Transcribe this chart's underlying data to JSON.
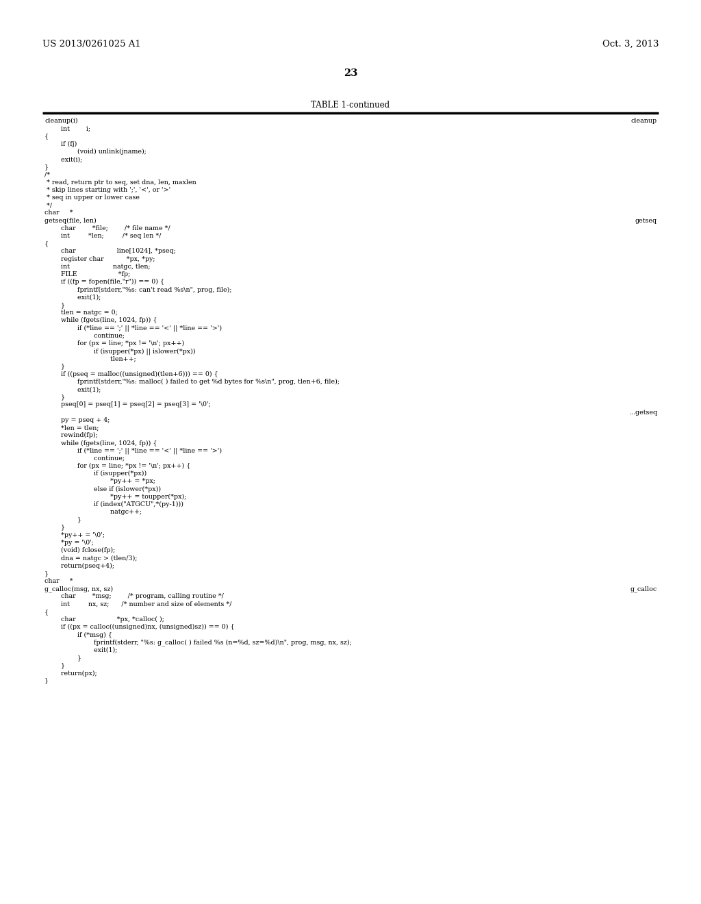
{
  "page_number": "23",
  "patent_number": "US 2013/0261025 A1",
  "patent_date": "Oct. 3, 2013",
  "table_title": "TABLE 1-continued",
  "background_color": "#ffffff",
  "text_color": "#000000",
  "header_font_size": 9.5,
  "page_num_font_size": 10.5,
  "table_title_font_size": 8.5,
  "code_font_size": 6.8,
  "code_lines": [
    [
      "cleanup(i)",
      "cleanup"
    ],
    [
      "        int        i;",
      ""
    ],
    [
      "{",
      ""
    ],
    [
      "        if (fj)",
      ""
    ],
    [
      "                (void) unlink(jname);",
      ""
    ],
    [
      "        exit(i);",
      ""
    ],
    [
      "}",
      ""
    ],
    [
      "/*",
      ""
    ],
    [
      " * read, return ptr to seq, set dna, len, maxlen",
      ""
    ],
    [
      " * skip lines starting with ';', '<', or '>'",
      ""
    ],
    [
      " * seq in upper or lower case",
      ""
    ],
    [
      " */",
      ""
    ],
    [
      "char     *",
      ""
    ],
    [
      "getseq(file, len)",
      "getseq"
    ],
    [
      "        char        *file;        /* file name */",
      ""
    ],
    [
      "        int         *len;         /* seq len */",
      ""
    ],
    [
      "{",
      ""
    ],
    [
      "        char                    line[1024], *pseq;",
      ""
    ],
    [
      "        register char           *px, *py;",
      ""
    ],
    [
      "        int                     natgc, tlen;",
      ""
    ],
    [
      "        FILE                    *fp;",
      ""
    ],
    [
      "        if ((fp = fopen(file,\"r\")) == 0) {",
      ""
    ],
    [
      "                fprintf(stderr,\"%s: can't read %s\\n\", prog, file);",
      ""
    ],
    [
      "                exit(1);",
      ""
    ],
    [
      "        }",
      ""
    ],
    [
      "        tlen = natgc = 0;",
      ""
    ],
    [
      "        while (fgets(line, 1024, fp)) {",
      ""
    ],
    [
      "                if (*line == ';' || *line == '<' || *line == '>')",
      ""
    ],
    [
      "                        continue;",
      ""
    ],
    [
      "                for (px = line; *px != '\\n'; px++)",
      ""
    ],
    [
      "                        if (isupper(*px) || islower(*px))",
      ""
    ],
    [
      "                                tlen++;",
      ""
    ],
    [
      "        }",
      ""
    ],
    [
      "        if ((pseq = malloc((unsigned)(tlen+6))) == 0) {",
      ""
    ],
    [
      "                fprintf(stderr,\"%s: malloc( ) failed to get %d bytes for %s\\n\", prog, tlen+6, file);",
      ""
    ],
    [
      "                exit(1);",
      ""
    ],
    [
      "        }",
      ""
    ],
    [
      "        pseq[0] = pseq[1] = pseq[2] = pseq[3] = '\\0';",
      ""
    ],
    [
      "",
      "...getseq"
    ],
    [
      "        py = pseq + 4;",
      ""
    ],
    [
      "        *len = tlen;",
      ""
    ],
    [
      "        rewind(fp);",
      ""
    ],
    [
      "        while (fgets(line, 1024, fp)) {",
      ""
    ],
    [
      "                if (*line == ';' || *line == '<' || *line == '>')",
      ""
    ],
    [
      "                        continue;",
      ""
    ],
    [
      "                for (px = line; *px != '\\n'; px++) {",
      ""
    ],
    [
      "                        if (isupper(*px))",
      ""
    ],
    [
      "                                *py++ = *px;",
      ""
    ],
    [
      "                        else if (islower(*px))",
      ""
    ],
    [
      "                                *py++ = toupper(*px);",
      ""
    ],
    [
      "                        if (index(\"ATGCU\",*(py-1)))",
      ""
    ],
    [
      "                                natgc++;",
      ""
    ],
    [
      "                }",
      ""
    ],
    [
      "        }",
      ""
    ],
    [
      "        *py++ = '\\0';",
      ""
    ],
    [
      "        *py = '\\0';",
      ""
    ],
    [
      "        (void) fclose(fp);",
      ""
    ],
    [
      "        dna = natgc > (tlen/3);",
      ""
    ],
    [
      "        return(pseq+4);",
      ""
    ],
    [
      "}",
      ""
    ],
    [
      "char     *",
      ""
    ],
    [
      "g_calloc(msg, nx, sz)",
      "g_calloc"
    ],
    [
      "        char        *msg;        /* program, calling routine */",
      ""
    ],
    [
      "        int         nx, sz;      /* number and size of elements */",
      ""
    ],
    [
      "{",
      ""
    ],
    [
      "        char                    *px, *calloc( );",
      ""
    ],
    [
      "        if ((px = calloc((unsigned)nx, (unsigned)sz)) == 0) {",
      ""
    ],
    [
      "                if (*msg) {",
      ""
    ],
    [
      "                        fprintf(stderr, \"%s: g_calloc( ) failed %s (n=%d, sz=%d)\\n\", prog, msg, nx, sz);",
      ""
    ],
    [
      "                        exit(1);",
      ""
    ],
    [
      "                }",
      ""
    ],
    [
      "        }",
      ""
    ],
    [
      "        return(px);",
      ""
    ],
    [
      "}",
      ""
    ]
  ]
}
